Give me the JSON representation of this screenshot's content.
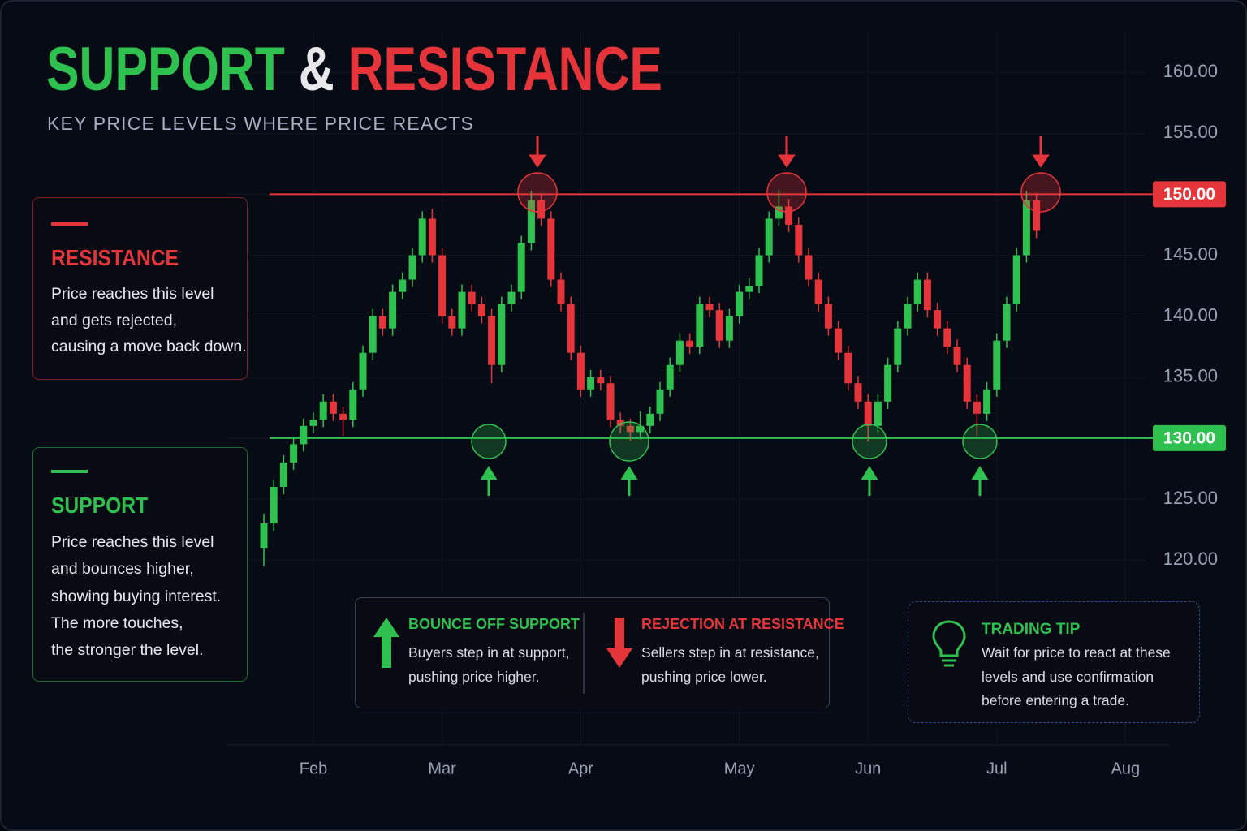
{
  "chart_data": {
    "type": "candlestick",
    "title": [
      "SUPPORT",
      "&",
      "RESISTANCE"
    ],
    "subtitle": "KEY PRICE LEVELS WHERE PRICE REACTS",
    "up_color": "#2ec14f",
    "down_color": "#e5353b",
    "grid": true,
    "ylim": [
      105,
      165
    ],
    "yticks": [
      {
        "value": 120,
        "label": "120.00"
      },
      {
        "value": 125,
        "label": "125.00"
      },
      {
        "value": 130,
        "label": "130.00"
      },
      {
        "value": 135,
        "label": "135.00"
      },
      {
        "value": 140,
        "label": "140.00"
      },
      {
        "value": 145,
        "label": "145.00"
      },
      {
        "value": 150,
        "label": "150.00"
      },
      {
        "value": 155,
        "label": "155.00"
      },
      {
        "value": 160,
        "label": "160.00"
      }
    ],
    "resistance": {
      "value": 150,
      "label": "150.00",
      "color": "#e5353b"
    },
    "support": {
      "value": 130,
      "label": "130.00",
      "color": "#2ec14f"
    },
    "categories": [
      null,
      null,
      null,
      null,
      null,
      "Feb",
      null,
      null,
      null,
      null,
      null,
      null,
      null,
      null,
      null,
      null,
      null,
      null,
      "Mar",
      null,
      null,
      null,
      null,
      null,
      null,
      null,
      null,
      null,
      null,
      null,
      null,
      null,
      "Apr",
      null,
      null,
      null,
      null,
      null,
      null,
      null,
      null,
      null,
      null,
      null,
      null,
      null,
      null,
      null,
      "May",
      null,
      null,
      null,
      null,
      null,
      null,
      null,
      null,
      null,
      null,
      null,
      null,
      "Jun",
      null,
      null,
      null,
      null,
      null,
      null,
      null,
      null,
      null,
      null,
      null,
      null,
      "Jul",
      null,
      null,
      null,
      null,
      null,
      null,
      null,
      null,
      null,
      null,
      null,
      null,
      "Aug"
    ],
    "open": [
      121,
      123,
      126,
      128,
      129.5,
      131,
      131.5,
      133,
      132,
      131.5,
      134,
      137,
      140,
      139,
      142,
      143,
      145,
      148,
      145,
      140,
      139,
      142,
      141,
      140,
      136,
      141,
      142,
      146,
      149.5,
      148,
      143,
      141,
      137,
      134,
      135,
      134.5,
      131.5,
      131,
      130.5,
      131,
      132,
      134,
      136,
      138,
      137.5,
      141,
      140.5,
      138,
      140,
      142,
      142.5,
      145,
      148,
      149,
      147.5,
      145,
      143,
      141,
      139,
      137,
      134.5,
      133,
      131,
      133,
      136,
      139,
      141,
      143,
      140.5,
      139,
      137.5,
      136,
      133,
      132,
      134,
      138,
      141,
      145,
      149.5,
      null,
      null,
      null,
      null,
      null,
      null,
      null,
      null,
      null
    ],
    "high": [
      123.8,
      126.6,
      128.6,
      130.1,
      131.6,
      132.1,
      133.6,
      133.6,
      132.6,
      134.6,
      137.6,
      140.6,
      140.6,
      142.6,
      143.6,
      145.6,
      148.6,
      148.8,
      145.6,
      140.6,
      142.6,
      142.6,
      141.6,
      140.6,
      141.6,
      142.6,
      146.6,
      150.3,
      150.1,
      148.6,
      143.6,
      141.6,
      137.6,
      135.6,
      135.6,
      135.1,
      132.1,
      131.6,
      132.2,
      132.6,
      134.6,
      136.6,
      138.6,
      138.6,
      141.6,
      141.6,
      141.1,
      140.6,
      142.6,
      143.1,
      145.6,
      148.6,
      150.4,
      149.6,
      148.1,
      145.6,
      143.6,
      141.6,
      139.6,
      137.6,
      135.1,
      133.6,
      133.6,
      136.6,
      139.6,
      141.6,
      143.6,
      143.6,
      141.1,
      139.6,
      138.1,
      136.6,
      133.6,
      134.6,
      138.6,
      141.6,
      145.6,
      150.3,
      150.1,
      null,
      null,
      null,
      null,
      null,
      null,
      null,
      null,
      null
    ],
    "low": [
      119.5,
      122.4,
      125.4,
      127.4,
      128.9,
      130.4,
      130.9,
      131.4,
      130.2,
      130.9,
      133.4,
      136.4,
      138.4,
      138.4,
      141.4,
      142.4,
      144.4,
      144.4,
      139.4,
      138.4,
      138.4,
      140.4,
      139.4,
      134.5,
      135.4,
      140.4,
      141.4,
      145.4,
      147.4,
      142.4,
      140.4,
      136.4,
      133.4,
      133.4,
      133.9,
      130.9,
      130.4,
      129.8,
      129.9,
      130.4,
      131.4,
      133.4,
      135.4,
      136.9,
      136.9,
      139.9,
      137.4,
      137.4,
      139.4,
      141.4,
      141.9,
      144.4,
      147.4,
      146.9,
      144.4,
      142.4,
      140.4,
      138.4,
      136.4,
      133.9,
      132.4,
      129.7,
      130.4,
      132.4,
      135.4,
      138.4,
      140.4,
      139.9,
      138.4,
      136.9,
      135.4,
      132.4,
      130.2,
      131.4,
      133.4,
      137.4,
      140.4,
      144.4,
      146.4,
      null,
      null,
      null,
      null,
      null,
      null,
      null,
      null,
      null
    ],
    "close": [
      123,
      126,
      128,
      129.5,
      131,
      131.5,
      133,
      132,
      131.5,
      134,
      137,
      140,
      139,
      142,
      143,
      145,
      148,
      145,
      140,
      139,
      142,
      141,
      140,
      136,
      141,
      142,
      146,
      149.5,
      148,
      143,
      141,
      137,
      134,
      135,
      134.5,
      131.5,
      131,
      130.5,
      131,
      132,
      134,
      136,
      138,
      137.5,
      141,
      140.5,
      138,
      140,
      142,
      142.5,
      145,
      148,
      149,
      147.5,
      145,
      143,
      141,
      139,
      137,
      134.5,
      133,
      131,
      133,
      136,
      139,
      141,
      143,
      140.5,
      139,
      137.5,
      136,
      133,
      132,
      134,
      138,
      141,
      145,
      149.5,
      147,
      null,
      null,
      null,
      null,
      null,
      null,
      null,
      null,
      null
    ]
  },
  "resistance_card": {
    "title": "RESISTANCE",
    "lines": [
      "Price reaches this level",
      "and gets rejected,",
      "causing a move back down."
    ]
  },
  "support_card": {
    "title": "SUPPORT",
    "lines": [
      "Price reaches this level",
      "and bounces higher,",
      "showing buying interest.",
      "The more touches,",
      "the stronger the level."
    ]
  },
  "bounce": {
    "title": "BOUNCE OFF SUPPORT",
    "lines": [
      "Buyers step in at support,",
      "pushing price higher."
    ]
  },
  "rejection": {
    "title": "REJECTION AT RESISTANCE",
    "lines": [
      "Sellers step in at resistance,",
      "pushing price lower."
    ]
  },
  "tip": {
    "title": "TRADING TIP",
    "lines": [
      "Wait for price to react at these",
      "levels and use confirmation",
      "before entering a trade."
    ]
  }
}
